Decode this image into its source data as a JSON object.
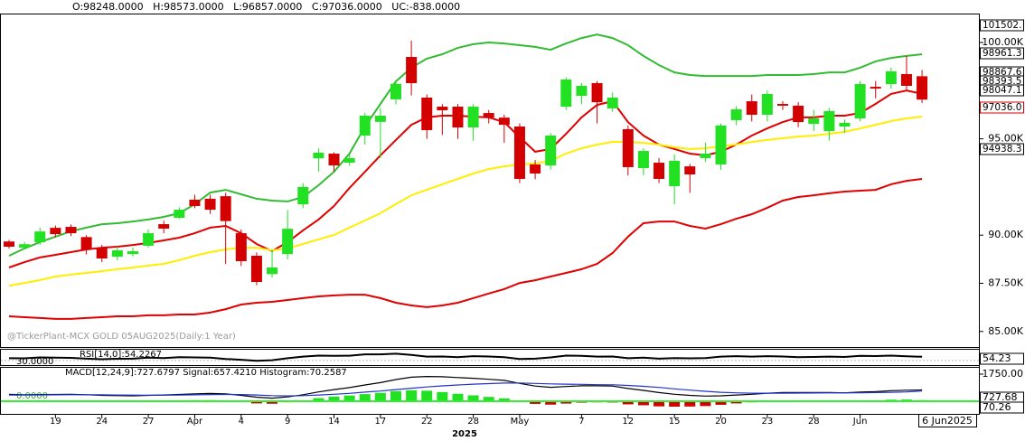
{
  "chart_data": {
    "type": "candlestick",
    "header": "O:98248.0000   H:98573.0000   L:96857.0000   C:97036.0000   UC:-838.0000",
    "watermark": "@TickerPlant-MCX GOLD 05AUG2025(Daily:1 Year)",
    "categories": [
      null,
      null,
      null,
      "19",
      null,
      null,
      "24",
      null,
      null,
      "27",
      null,
      null,
      "Apr",
      null,
      null,
      "4",
      null,
      null,
      "9",
      null,
      null,
      "14",
      null,
      null,
      "17",
      null,
      null,
      "22",
      null,
      null,
      "28",
      null,
      null,
      "May",
      null,
      null,
      null,
      "7",
      null,
      null,
      "12",
      null,
      null,
      "15",
      null,
      null,
      "20",
      null,
      null,
      "23",
      null,
      null,
      "28",
      null,
      null,
      "Jun",
      null,
      null,
      null,
      null
    ],
    "open": [
      89670,
      89350,
      89630,
      90380,
      90430,
      89900,
      89350,
      88880,
      89020,
      89450,
      90570,
      90900,
      91840,
      91890,
      92020,
      90100,
      88930,
      87980,
      89020,
      91600,
      93990,
      94230,
      93760,
      95170,
      95880,
      97050,
      99250,
      97140,
      96670,
      96670,
      95590,
      96340,
      96100,
      95640,
      93670,
      93620,
      96670,
      97230,
      97890,
      96580,
      95500,
      93480,
      93760,
      92540,
      93570,
      94000,
      93670,
      95970,
      96950,
      96250,
      96810,
      96720,
      95780,
      95400,
      95640,
      96060,
      97700,
      97840,
      98360,
      98248
    ],
    "high": [
      89750,
      89650,
      90400,
      90500,
      90550,
      90000,
      89500,
      89400,
      89350,
      90300,
      90750,
      91450,
      92100,
      92100,
      92200,
      90300,
      89100,
      89250,
      91300,
      92700,
      94500,
      94300,
      94200,
      96350,
      96600,
      98050,
      100100,
      97300,
      96800,
      96800,
      96800,
      96500,
      96250,
      95800,
      93900,
      95300,
      98200,
      97900,
      98000,
      97400,
      95700,
      94500,
      94000,
      94200,
      93700,
      94800,
      95800,
      96700,
      97300,
      97500,
      96950,
      96900,
      96500,
      96600,
      96000,
      98000,
      98000,
      98700,
      99300,
      98573
    ],
    "low": [
      89300,
      89250,
      89500,
      89900,
      89950,
      89000,
      88600,
      88700,
      88900,
      89350,
      90100,
      90850,
      91400,
      91100,
      88500,
      88400,
      87400,
      87800,
      88750,
      91400,
      93300,
      93300,
      93600,
      94700,
      94000,
      96800,
      97250,
      95000,
      95200,
      95000,
      94900,
      95800,
      94800,
      92700,
      92900,
      93400,
      96500,
      96800,
      95800,
      96400,
      93100,
      93100,
      92700,
      91600,
      92200,
      93800,
      93400,
      95700,
      95900,
      95900,
      96500,
      95600,
      95400,
      94900,
      95300,
      95900,
      97100,
      97600,
      97500,
      96857
    ],
    "close": [
      89400,
      89530,
      90190,
      90050,
      90100,
      89260,
      88790,
      89210,
      89170,
      90100,
      90340,
      91320,
      91510,
      91320,
      90730,
      88650,
      87570,
      88320,
      90330,
      92500,
      94280,
      93620,
      94000,
      96200,
      96200,
      97850,
      97890,
      95450,
      96480,
      95590,
      96670,
      96100,
      95730,
      92920,
      93200,
      95170,
      98080,
      97750,
      96900,
      97140,
      93530,
      94370,
      92920,
      93860,
      93150,
      94230,
      95690,
      96530,
      96250,
      97330,
      96720,
      95870,
      96060,
      96440,
      95830,
      97840,
      97610,
      98500,
      97750,
      97036
    ],
    "up_color": "#22e022",
    "down_color": "#d40000",
    "ylim": [
      84240,
      101502
    ],
    "yticks": [
      {
        "value": 85000,
        "label": "85.00K"
      },
      {
        "value": 87500,
        "label": "87.50K"
      },
      {
        "value": 90000,
        "label": "90.00K"
      },
      {
        "value": 95000,
        "label": "95.00K"
      },
      {
        "value": 100000,
        "label": "100.00K"
      }
    ],
    "overlays": [
      {
        "color": "#33bb33",
        "values": [
          88930,
          89310,
          89640,
          89920,
          90200,
          90390,
          90570,
          90620,
          90710,
          90810,
          90950,
          91140,
          91600,
          92210,
          92350,
          92120,
          91890,
          91790,
          91750,
          91980,
          92590,
          93290,
          94230,
          95640,
          96810,
          97980,
          98690,
          99160,
          99390,
          99720,
          99910,
          100000,
          99950,
          99860,
          99770,
          99620,
          99950,
          100230,
          100420,
          100230,
          99860,
          99300,
          98830,
          98450,
          98310,
          98260,
          98260,
          98260,
          98260,
          98310,
          98310,
          98310,
          98360,
          98450,
          98450,
          98690,
          99020,
          99200,
          99300,
          99390
        ]
      },
      {
        "color": "#e00000",
        "values": [
          88320,
          88600,
          88840,
          88980,
          89120,
          89260,
          89350,
          89400,
          89490,
          89590,
          89730,
          89870,
          90100,
          90390,
          90480,
          90100,
          89540,
          89170,
          89640,
          90250,
          90810,
          91510,
          92450,
          93290,
          94140,
          94940,
          95730,
          96110,
          96200,
          96200,
          96150,
          96110,
          95870,
          95080,
          94330,
          94470,
          95260,
          96110,
          96760,
          96950,
          95870,
          95170,
          94700,
          94470,
          94230,
          94140,
          94330,
          94700,
          95170,
          95540,
          95870,
          96110,
          96110,
          96200,
          96200,
          96340,
          96810,
          97330,
          97510,
          97330
        ]
      },
      {
        "color": "#e00000",
        "values": [
          85790,
          85740,
          85700,
          85650,
          85650,
          85700,
          85740,
          85790,
          85790,
          85840,
          85840,
          85880,
          85880,
          85980,
          86160,
          86400,
          86490,
          86540,
          86630,
          86730,
          86820,
          86870,
          86910,
          86910,
          86730,
          86490,
          86350,
          86260,
          86350,
          86490,
          86730,
          86970,
          87200,
          87520,
          87660,
          87850,
          88040,
          88230,
          88510,
          89070,
          89920,
          90620,
          90710,
          90710,
          90480,
          90340,
          90570,
          90850,
          91090,
          91420,
          91790,
          91980,
          92070,
          92170,
          92260,
          92310,
          92350,
          92640,
          92820,
          92920
        ]
      },
      {
        "color": "#ffee00",
        "values": [
          87380,
          87520,
          87670,
          87850,
          87950,
          88040,
          88130,
          88230,
          88320,
          88420,
          88510,
          88700,
          88930,
          89120,
          89260,
          89350,
          89350,
          89210,
          89310,
          89540,
          89780,
          90010,
          90390,
          90760,
          91140,
          91610,
          92070,
          92360,
          92640,
          92920,
          93200,
          93430,
          93570,
          93670,
          93720,
          93860,
          94230,
          94510,
          94700,
          94840,
          94840,
          94790,
          94700,
          94560,
          94470,
          94510,
          94610,
          94700,
          94840,
          94940,
          95030,
          95120,
          95170,
          95260,
          95360,
          95540,
          95730,
          95920,
          96060,
          96150
        ]
      }
    ],
    "price_labels": [
      "101502.",
      "98961.3",
      "98867.6",
      "98393.5",
      "98047.1",
      "97036.0",
      "94938.3"
    ],
    "year_label": "2025",
    "last_date_label": "6 Jun2025",
    "rsi": {
      "title": "RSI[14,0]:54.2267",
      "color": "#000000",
      "ylim": [
        0,
        100
      ],
      "yticks": [
        {
          "value": 30,
          "label": "30.0000"
        }
      ],
      "values": [
        45,
        44,
        50,
        48,
        47,
        42,
        38,
        41,
        42,
        48,
        46,
        52,
        50,
        48,
        40,
        35,
        28,
        32,
        45,
        55,
        62,
        60,
        61,
        70,
        70,
        74,
        66,
        55,
        56,
        52,
        58,
        56,
        52,
        40,
        42,
        50,
        62,
        60,
        55,
        56,
        45,
        48,
        42,
        46,
        44,
        46,
        55,
        58,
        55,
        58,
        56,
        52,
        53,
        55,
        53,
        60,
        59,
        62,
        57,
        54.23
      ],
      "last_label": "54.23"
    },
    "macd": {
      "title": "MACD[12,24,9]:727.6797 Signal:657.4210 Histogram:70.2587",
      "ylim": [
        -817,
        2217
      ],
      "yticks": [
        {
          "value": 0,
          "label": "0.0000"
        },
        {
          "value": 1750,
          "label": "1750.00"
        }
      ],
      "series": [
        {
          "color": "#000000",
          "values": [
            450,
            420,
            430,
            440,
            450,
            420,
            380,
            360,
            350,
            380,
            400,
            440,
            480,
            500,
            470,
            380,
            260,
            200,
            280,
            420,
            600,
            750,
            880,
            1050,
            1200,
            1400,
            1550,
            1600,
            1580,
            1530,
            1480,
            1420,
            1350,
            1150,
            980,
            900,
            950,
            1000,
            1000,
            980,
            820,
            700,
            560,
            450,
            380,
            330,
            350,
            400,
            450,
            520,
            560,
            560,
            560,
            560,
            540,
            590,
            620,
            680,
            710,
            727.68
          ]
        },
        {
          "color": "#2233cc",
          "values": [
            400,
            405,
            410,
            415,
            420,
            420,
            415,
            405,
            395,
            390,
            390,
            400,
            415,
            430,
            440,
            430,
            400,
            360,
            345,
            360,
            400,
            450,
            510,
            590,
            660,
            750,
            840,
            920,
            990,
            1050,
            1100,
            1140,
            1170,
            1170,
            1150,
            1120,
            1100,
            1090,
            1070,
            1060,
            1020,
            960,
            890,
            800,
            720,
            640,
            580,
            540,
            520,
            520,
            520,
            525,
            530,
            535,
            535,
            545,
            560,
            580,
            600,
            657.42
          ]
        }
      ],
      "histogram": [
        50,
        15,
        20,
        25,
        30,
        0,
        -35,
        -45,
        -45,
        -10,
        10,
        40,
        65,
        70,
        30,
        -50,
        -140,
        -160,
        -65,
        60,
        200,
        300,
        370,
        460,
        540,
        650,
        710,
        680,
        590,
        480,
        380,
        280,
        180,
        -20,
        -170,
        -220,
        -150,
        -90,
        -70,
        -80,
        -200,
        -260,
        -330,
        -350,
        -340,
        -310,
        -230,
        -140,
        -70,
        0,
        40,
        35,
        30,
        25,
        5,
        45,
        60,
        100,
        110,
        70.26
      ],
      "zero_color": "#33ee33",
      "last_labels": [
        "727.68",
        "70.26"
      ]
    }
  }
}
